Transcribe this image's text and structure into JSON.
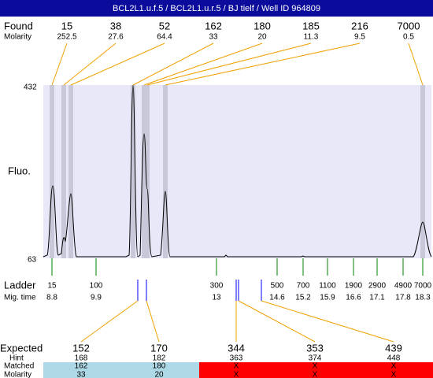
{
  "title": "BCL2L1.u.f.5 / BCL2L1.u.r.5 / BJ tielf / Well ID 964809",
  "found": {
    "label": "Found",
    "molarity_label": "Molarity",
    "sizes": [
      15,
      38,
      52,
      162,
      180,
      185,
      216,
      7000
    ],
    "molarity": [
      252.5,
      27.6,
      64.4,
      33,
      20,
      11.3,
      9.5,
      0.5
    ]
  },
  "fluo_axis": {
    "label": "Fluo.",
    "top": 432,
    "bottom": 63
  },
  "ladder": {
    "label": "Ladder",
    "time_label": "Mig. time",
    "sizes": [
      15,
      100,
      300,
      500,
      700,
      1100,
      1900,
      2900,
      4900,
      7000
    ],
    "times": [
      8.8,
      9.9,
      13,
      14.6,
      15.2,
      15.9,
      16.6,
      17.1,
      17.8,
      18.3
    ]
  },
  "expected": {
    "label": "Expected",
    "hint_label": "Hint",
    "matched_label": "Matched",
    "molarity_label": "Molarity",
    "sizes": [
      152,
      170,
      344,
      353,
      439
    ],
    "hint": [
      168,
      182,
      363,
      374,
      448
    ],
    "matched": [
      162,
      180,
      "X",
      "X",
      "X"
    ],
    "molarity": [
      33,
      20,
      "X",
      "X",
      "X"
    ]
  }
}
